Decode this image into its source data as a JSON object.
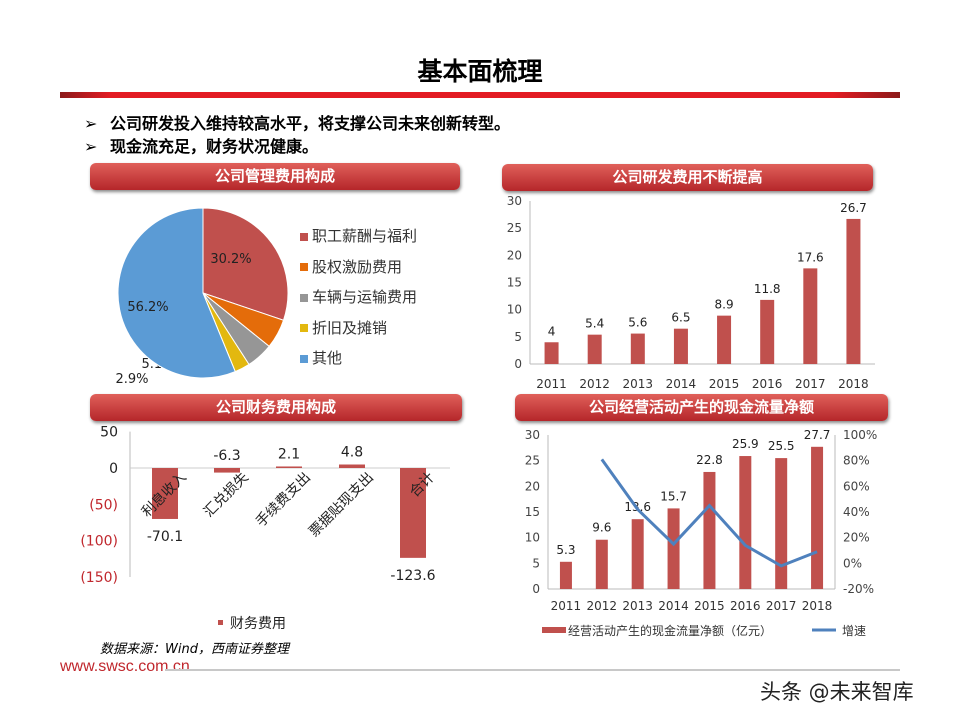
{
  "title": "基本面梳理",
  "bullets": [
    "公司研发投入维持较高水平，将支撑公司未来创新转型。",
    "现金流充足，财务状况健康。"
  ],
  "bullet_icon": "arrow-bullet-icon",
  "banners": [
    "公司管理费用构成",
    "公司研发费用不断提高",
    "公司财务费用构成",
    "公司经营活动产生的现金流量净额"
  ],
  "source": "数据来源：Wind，西南证券整理",
  "footer_url": "www.swsc.com.cn",
  "watermark": "头条 @未来智库",
  "colors": {
    "accent": "#c0272d",
    "bar": "#c0504d",
    "line": "#4f81bd"
  },
  "chart_data": [
    {
      "type": "pie",
      "categories": [
        "职工薪酬与福利",
        "股权激励费用",
        "车辆与运输费用",
        "折旧及摊销",
        "其他"
      ],
      "values": [
        30.2,
        5.6,
        5.1,
        2.9,
        56.2
      ],
      "labels": [
        "30.2%",
        "5.6%",
        "5.1%",
        "2.9%",
        "56.2%"
      ],
      "colors": [
        "#c0504d",
        "#e46c0a",
        "#969696",
        "#e3b80f",
        "#5b9bd5"
      ],
      "legend": "right"
    },
    {
      "type": "bar",
      "categories": [
        "2011",
        "2012",
        "2013",
        "2014",
        "2015",
        "2016",
        "2017",
        "2018"
      ],
      "values": [
        4,
        5.4,
        5.6,
        6.5,
        8.9,
        11.8,
        17.6,
        26.7
      ],
      "ylim": [
        0,
        30
      ],
      "yticks": [
        "0",
        "5",
        "10",
        "15",
        "20",
        "25",
        "30"
      ],
      "grid": false
    },
    {
      "type": "bar",
      "categories": [
        "利息收入",
        "汇兑损失",
        "手续费支出",
        "票据贴现支出",
        "合计"
      ],
      "values": [
        -70.1,
        -6.3,
        2.1,
        4.8,
        -123.6
      ],
      "labels": [
        "-70.1",
        "-6.3",
        "2.1",
        "4.8",
        "-123.6"
      ],
      "ylim": [
        -150,
        50
      ],
      "yticks": [
        "50",
        "0",
        "(50)",
        "(100)",
        "(150)"
      ],
      "series_name": "财务费用",
      "legend": "bottom"
    },
    {
      "type": "bar+line",
      "categories": [
        "2011",
        "2012",
        "2013",
        "2014",
        "2015",
        "2016",
        "2017",
        "2018"
      ],
      "series": [
        {
          "name": "经营活动产生的现金流量净额（亿元）",
          "type": "bar",
          "values": [
            5.3,
            9.6,
            13.6,
            15.7,
            22.8,
            25.9,
            25.5,
            27.7
          ]
        },
        {
          "name": "增速",
          "type": "line",
          "values": [
            null,
            81,
            42,
            15,
            45,
            14,
            -2,
            9
          ]
        }
      ],
      "ylim": [
        0,
        30
      ],
      "yticks": [
        "0",
        "5",
        "10",
        "15",
        "20",
        "25",
        "30"
      ],
      "y2lim": [
        -20,
        100
      ],
      "y2ticks": [
        "-20%",
        "0%",
        "20%",
        "40%",
        "60%",
        "80%",
        "100%"
      ],
      "legend": "bottom"
    }
  ]
}
